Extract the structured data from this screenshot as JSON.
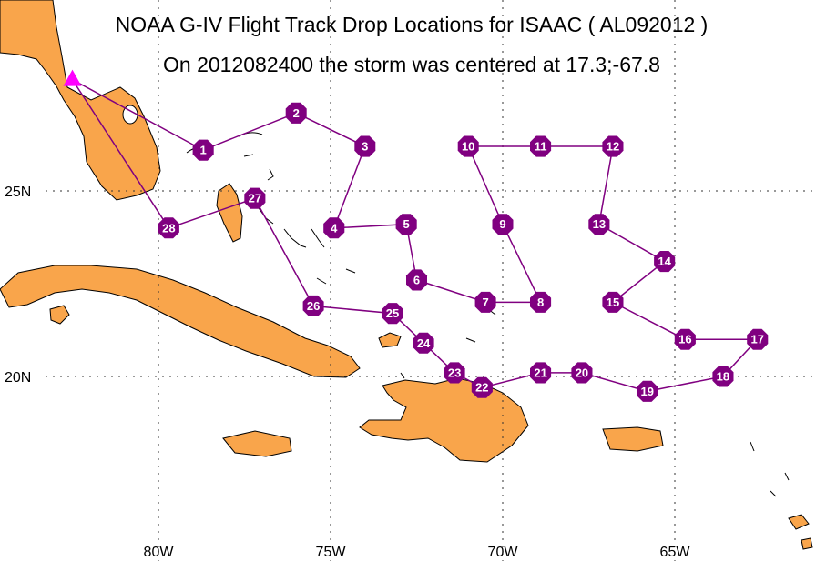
{
  "title": "NOAA G-IV Flight Track Drop Locations for ISAAC ( AL092012 )",
  "subtitle": "On 2012082400 the storm was centered at 17.3;-67.8",
  "axes": {
    "lon_ticks": [
      {
        "lon": -80,
        "label": "80W"
      },
      {
        "lon": -75,
        "label": "75W"
      },
      {
        "lon": -70,
        "label": "70W"
      },
      {
        "lon": -65,
        "label": "65W"
      }
    ],
    "lat_ticks": [
      {
        "lat": 25,
        "label": "25N"
      },
      {
        "lat": 20,
        "label": "20N"
      }
    ]
  },
  "colors": {
    "land": "#F9A54B",
    "track": "#800080",
    "drop_fill": "#800080",
    "drop_text": "#ffffff",
    "base_marker": "#FF00FF",
    "grid": "#333333"
  },
  "chart_data": {
    "type": "map-track",
    "base": {
      "lat": 28.0,
      "lon": -82.5
    },
    "drops": [
      {
        "label": "1",
        "lat": 26.1,
        "lon": -78.7
      },
      {
        "label": "2",
        "lat": 27.1,
        "lon": -76.0
      },
      {
        "label": "3",
        "lat": 26.2,
        "lon": -74.0
      },
      {
        "label": "4",
        "lat": 24.0,
        "lon": -74.9
      },
      {
        "label": "5",
        "lat": 24.1,
        "lon": -72.8
      },
      {
        "label": "6",
        "lat": 22.6,
        "lon": -72.5
      },
      {
        "label": "7",
        "lat": 22.0,
        "lon": -70.5
      },
      {
        "label": "8",
        "lat": 22.0,
        "lon": -68.9
      },
      {
        "label": "9",
        "lat": 24.1,
        "lon": -70.0
      },
      {
        "label": "10",
        "lat": 26.2,
        "lon": -71.0
      },
      {
        "label": "11",
        "lat": 26.2,
        "lon": -68.9
      },
      {
        "label": "12",
        "lat": 26.2,
        "lon": -66.8
      },
      {
        "label": "13",
        "lat": 24.1,
        "lon": -67.2
      },
      {
        "label": "14",
        "lat": 23.1,
        "lon": -65.3
      },
      {
        "label": "15",
        "lat": 22.0,
        "lon": -66.8
      },
      {
        "label": "16",
        "lat": 21.0,
        "lon": -64.7
      },
      {
        "label": "17",
        "lat": 21.0,
        "lon": -62.6
      },
      {
        "label": "18",
        "lat": 20.0,
        "lon": -63.6
      },
      {
        "label": "19",
        "lat": 19.6,
        "lon": -65.8
      },
      {
        "label": "20",
        "lat": 20.1,
        "lon": -67.7
      },
      {
        "label": "21",
        "lat": 20.1,
        "lon": -68.9
      },
      {
        "label": "22",
        "lat": 19.7,
        "lon": -70.6
      },
      {
        "label": "23",
        "lat": 20.1,
        "lon": -71.4
      },
      {
        "label": "24",
        "lat": 20.9,
        "lon": -72.3
      },
      {
        "label": "25",
        "lat": 21.7,
        "lon": -73.2
      },
      {
        "label": "26",
        "lat": 21.9,
        "lon": -75.5
      },
      {
        "label": "27",
        "lat": 24.8,
        "lon": -77.2
      },
      {
        "label": "28",
        "lat": 24.0,
        "lon": -79.7
      }
    ]
  }
}
